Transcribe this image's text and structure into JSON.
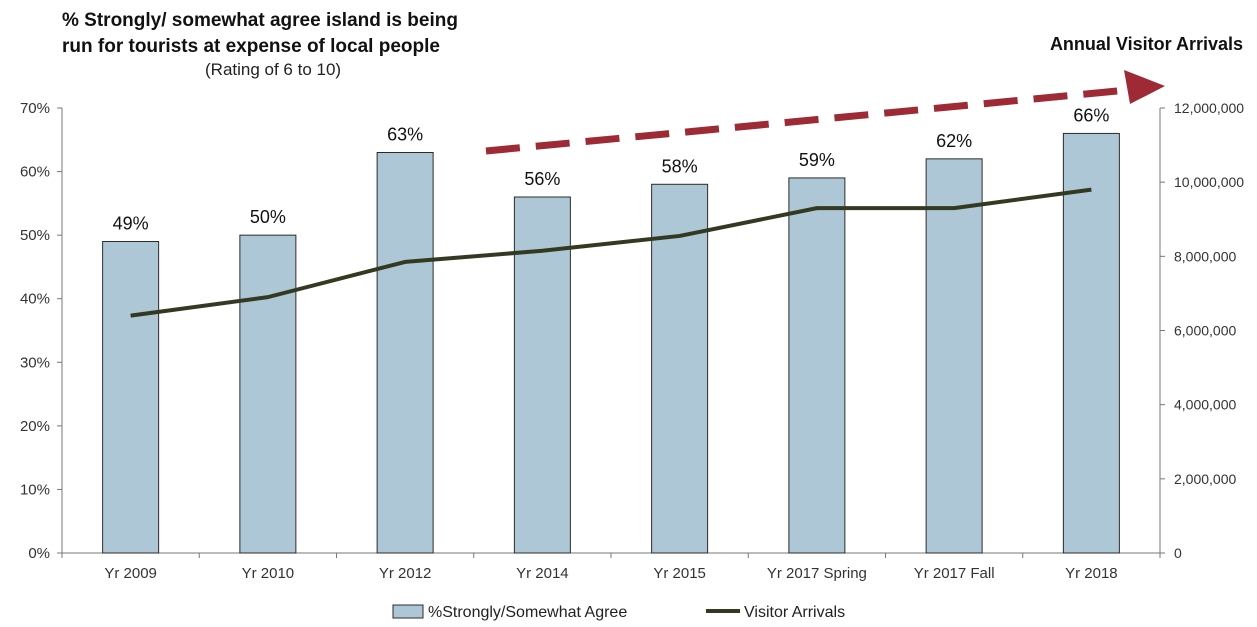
{
  "chart_data": {
    "type": "bar",
    "title_lines": [
      "% Strongly/ somewhat agree island is being",
      "run for tourists at expense of local people"
    ],
    "subtitle": "(Rating of 6 to 10)",
    "right_axis_title": "Annual Visitor Arrivals",
    "categories": [
      "Yr 2009",
      "Yr 2010",
      "Yr 2012",
      "Yr 2014",
      "Yr 2015",
      "Yr 2017 Spring",
      "Yr 2017 Fall",
      "Yr 2018"
    ],
    "series": [
      {
        "name": "%Strongly/Somewhat Agree",
        "type": "bar",
        "axis": "left",
        "values": [
          49,
          50,
          63,
          56,
          58,
          59,
          62,
          66
        ],
        "data_labels": [
          "49%",
          "50%",
          "63%",
          "56%",
          "58%",
          "59%",
          "62%",
          "66%"
        ],
        "color": "#aec7d6"
      },
      {
        "name": "Visitor Arrivals",
        "type": "line",
        "axis": "right",
        "values": [
          6400000,
          6900000,
          7850000,
          8150000,
          8550000,
          9300000,
          9300000,
          9800000
        ],
        "color": "#343a22"
      }
    ],
    "y_left": {
      "ylim": [
        0,
        70
      ],
      "ticks": [
        "0%",
        "10%",
        "20%",
        "30%",
        "40%",
        "50%",
        "60%",
        "70%"
      ]
    },
    "y_right": {
      "ylim": [
        0,
        12000000
      ],
      "ticks": [
        "0",
        "2,000,000",
        "4,000,000",
        "6,000,000",
        "8,000,000",
        "10,000,000",
        "12,000,000"
      ]
    },
    "grid": false,
    "legend_position": "bottom",
    "trend_arrow_color": "#9e2a35"
  }
}
